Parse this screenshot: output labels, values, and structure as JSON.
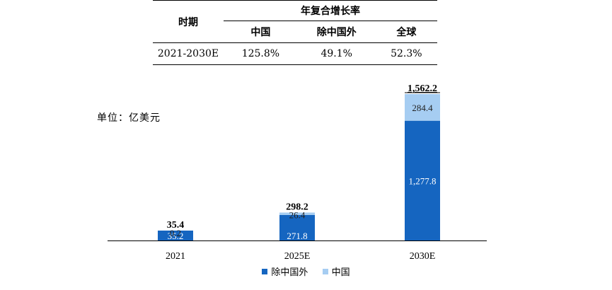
{
  "table": {
    "period_header": "时期",
    "cagr_header": "年复合增长率",
    "columns": [
      "中国",
      "除中国外",
      "全球"
    ],
    "rows": [
      {
        "period": "2021-2030E",
        "values": [
          "125.8%",
          "49.1%",
          "52.3%"
        ]
      }
    ]
  },
  "unit_label": "单位：亿美元",
  "colors": {
    "rest_of_world": "#1565c0",
    "china": "#a6cdf2"
  },
  "chart_data": {
    "type": "bar",
    "stacked": true,
    "categories": [
      "2021",
      "2025E",
      "2030E"
    ],
    "series": [
      {
        "name": "除中国外",
        "values": [
          35.2,
          271.8,
          1277.8
        ],
        "labels": [
          "35.2",
          "271.8",
          "1,277.8"
        ]
      },
      {
        "name": "中国",
        "values": [
          0.2,
          26.4,
          284.4
        ],
        "labels": [
          "0.2",
          "26.4",
          "284.4"
        ]
      }
    ],
    "totals": [
      35.4,
      298.2,
      1562.2
    ],
    "total_labels": [
      "35.4",
      "298.2",
      "1,562.2"
    ],
    "ylim": [
      0,
      1562.2
    ],
    "legend_position": "bottom",
    "grid": false
  }
}
